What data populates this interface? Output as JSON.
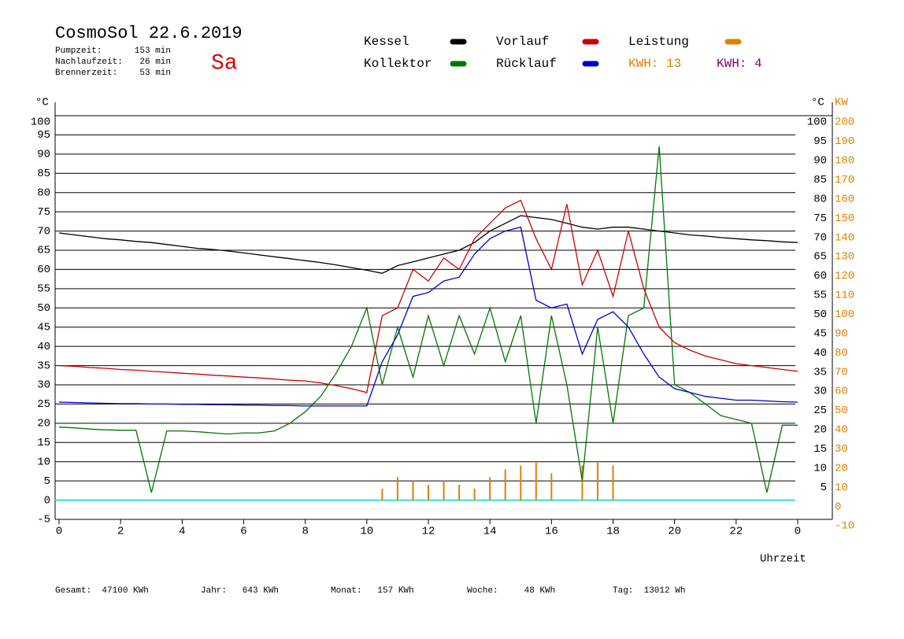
{
  "chart_data": {
    "type": "line",
    "title": "CosmoSol 22.6.2019",
    "day": "Sa",
    "stats": [
      {
        "label": "Pumpzeit:",
        "value": "153 min"
      },
      {
        "label": "Nachlaufzeit:",
        "value": "26 min"
      },
      {
        "label": "Brennerzeit:",
        "value": "53 min"
      }
    ],
    "y_label": "°C",
    "y_right_label": "°C",
    "y2_label": "KW",
    "x_label": "Uhrzeit",
    "annotations": [
      {
        "text": "KWH: 13",
        "color": "#e08000"
      },
      {
        "text": "KWH: 4",
        "color": "#800080"
      }
    ],
    "footer": [
      "Gesamt:  47100 KWh",
      "Jahr:   643 KWh",
      "Monat:   157 KWh",
      "Woche:     48 KWh",
      "Tag:  13012 Wh"
    ],
    "xlim": [
      0,
      24
    ],
    "xticks": [
      0,
      2,
      4,
      6,
      8,
      10,
      12,
      14,
      16,
      18,
      20,
      22,
      {
        "value": 24,
        "label": "0"
      }
    ],
    "ylim": [
      -5,
      100
    ],
    "yticks": [
      -5,
      0,
      5,
      10,
      15,
      20,
      25,
      30,
      35,
      40,
      45,
      50,
      55,
      60,
      65,
      70,
      75,
      80,
      85,
      90,
      95,
      100
    ],
    "y_right_ticks": [
      5,
      10,
      15,
      20,
      25,
      30,
      35,
      40,
      45,
      50,
      55,
      60,
      65,
      70,
      75,
      80,
      85,
      90,
      95,
      100
    ],
    "y2lim": [
      -10,
      200
    ],
    "y2ticks": [
      -10,
      0,
      10,
      20,
      30,
      40,
      50,
      60,
      70,
      80,
      90,
      100,
      110,
      120,
      130,
      140,
      150,
      160,
      170,
      180,
      190,
      200
    ],
    "grid": true,
    "x": [
      0,
      0.5,
      1,
      1.5,
      2,
      2.5,
      3,
      3.5,
      4,
      4.5,
      5,
      5.5,
      6,
      6.5,
      7,
      7.5,
      8,
      8.5,
      9,
      9.5,
      10,
      10.5,
      11,
      11.5,
      12,
      12.5,
      13,
      13.5,
      14,
      14.5,
      15,
      15.5,
      16,
      16.5,
      17,
      17.5,
      18,
      18.5,
      19,
      19.5,
      20,
      20.5,
      21,
      21.5,
      22,
      22.5,
      23,
      23.5,
      24
    ],
    "series": [
      {
        "name": "Kessel",
        "color": "#000000",
        "values": [
          69.5,
          69,
          68.5,
          68,
          67.7,
          67.3,
          67,
          66.5,
          66,
          65.5,
          65.2,
          64.8,
          64.3,
          63.8,
          63.3,
          62.8,
          62.3,
          61.8,
          61.2,
          60.5,
          59.8,
          59,
          61,
          62,
          63,
          64,
          65,
          67,
          70,
          72,
          74,
          73.5,
          73,
          72,
          71,
          70.5,
          71,
          71,
          70.5,
          70,
          69.5,
          69,
          68.7,
          68.3,
          68,
          67.7,
          67.5,
          67.2,
          67
        ]
      },
      {
        "name": "Vorlauf",
        "color": "#cc0000",
        "values": [
          35,
          34.8,
          34.5,
          34.3,
          34,
          33.8,
          33.5,
          33.3,
          33,
          32.8,
          32.5,
          32.3,
          32,
          31.8,
          31.5,
          31.2,
          31,
          30.5,
          29.8,
          29,
          28,
          48,
          50,
          60,
          57,
          63,
          60,
          68,
          72,
          76,
          78,
          68,
          60,
          77,
          56,
          65,
          53,
          70,
          55,
          45,
          41,
          39,
          37.5,
          36.5,
          35.5,
          35,
          34.5,
          34,
          33.5
        ]
      },
      {
        "name": "Leistung",
        "color": "#e08000",
        "axis": "y2",
        "values": [
          0,
          0,
          0,
          0,
          0,
          0,
          0,
          0,
          0,
          0,
          0,
          0,
          0,
          0,
          0,
          0,
          0,
          0,
          0,
          0,
          0,
          6,
          12,
          10,
          8,
          10,
          8,
          6,
          12,
          16,
          18,
          20,
          14,
          0,
          18,
          20,
          18,
          0,
          0,
          0,
          0,
          0,
          0,
          0,
          0,
          0,
          0,
          0,
          0
        ]
      },
      {
        "name": "Kollektor",
        "color": "#007700",
        "values": [
          19,
          18.8,
          18.5,
          18.3,
          18.2,
          18.2,
          2,
          18,
          18,
          17.8,
          17.5,
          17.2,
          17.5,
          17.5,
          18,
          20,
          23,
          27,
          33,
          40,
          50,
          30,
          45,
          32,
          48,
          35,
          48,
          38,
          50,
          36,
          48,
          20,
          48,
          30,
          5,
          45,
          20,
          48,
          50,
          92,
          30,
          28,
          25,
          22,
          21,
          20,
          2,
          19.5,
          19.5
        ]
      },
      {
        "name": "Rücklauf",
        "color": "#0000cc",
        "values": [
          25.5,
          25.4,
          25.3,
          25.2,
          25.1,
          25.1,
          25,
          25,
          24.9,
          24.9,
          24.8,
          24.8,
          24.7,
          24.7,
          24.6,
          24.6,
          24.5,
          24.5,
          24.5,
          24.5,
          24.5,
          36,
          43,
          53,
          54,
          57,
          58,
          64,
          68,
          70,
          71,
          52,
          50,
          51,
          38,
          47,
          49,
          45,
          38,
          32,
          29,
          28,
          27,
          26.5,
          26,
          26,
          25.8,
          25.6,
          25.5
        ]
      }
    ]
  }
}
